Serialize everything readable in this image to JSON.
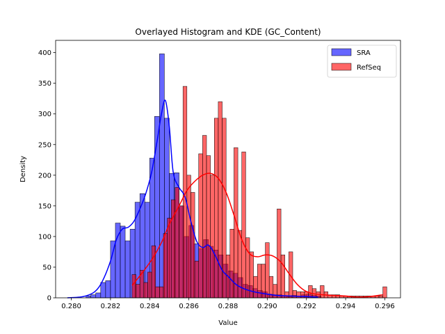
{
  "chart_data": {
    "type": "bar",
    "title": "Overlayed Histogram and KDE (GC_Content)",
    "xlabel": "Value",
    "ylabel": "Density",
    "xlim": [
      0.2792,
      0.2968
    ],
    "ylim": [
      0,
      420
    ],
    "x_ticks": [
      "0.280",
      "0.282",
      "0.284",
      "0.286",
      "0.288",
      "0.290",
      "0.292",
      "0.294",
      "0.296"
    ],
    "y_ticks": [
      "0",
      "50",
      "100",
      "150",
      "200",
      "250",
      "300",
      "350",
      "400"
    ],
    "grid": false,
    "legend_position": "top-right",
    "series": [
      {
        "name": "SRA",
        "kind": "histogram",
        "color": "#0000ff",
        "bin_width": 0.00025,
        "bins": [
          [
            0.28075,
            3
          ],
          [
            0.281,
            5
          ],
          [
            0.28125,
            8
          ],
          [
            0.2815,
            25
          ],
          [
            0.28175,
            28
          ],
          [
            0.282,
            93
          ],
          [
            0.28225,
            122
          ],
          [
            0.2825,
            117
          ],
          [
            0.28275,
            93
          ],
          [
            0.283,
            112
          ],
          [
            0.28325,
            156
          ],
          [
            0.2835,
            170
          ],
          [
            0.28375,
            156
          ],
          [
            0.284,
            228
          ],
          [
            0.28425,
            296
          ],
          [
            0.2845,
            398
          ],
          [
            0.28475,
            293
          ],
          [
            0.285,
            203
          ],
          [
            0.28525,
            204
          ],
          [
            0.2855,
            150
          ],
          [
            0.28575,
            100
          ],
          [
            0.286,
            118
          ],
          [
            0.28625,
            88
          ],
          [
            0.2865,
            80
          ],
          [
            0.28675,
            95
          ],
          [
            0.287,
            84
          ],
          [
            0.28725,
            78
          ],
          [
            0.2875,
            70
          ],
          [
            0.28775,
            55
          ],
          [
            0.288,
            44
          ],
          [
            0.28825,
            40
          ],
          [
            0.2885,
            33
          ],
          [
            0.28875,
            22
          ],
          [
            0.289,
            20
          ],
          [
            0.28925,
            15
          ],
          [
            0.2895,
            12
          ],
          [
            0.28975,
            10
          ],
          [
            0.29,
            6
          ],
          [
            0.29025,
            5
          ],
          [
            0.2905,
            5
          ],
          [
            0.29075,
            3
          ],
          [
            0.291,
            2
          ],
          [
            0.29125,
            4
          ],
          [
            0.2915,
            2
          ],
          [
            0.29175,
            5
          ],
          [
            0.292,
            6
          ],
          [
            0.29225,
            4
          ],
          [
            0.2925,
            3
          ]
        ],
        "kde_x": [
          0.2798,
          0.2806,
          0.2812,
          0.2816,
          0.282,
          0.2823,
          0.2826,
          0.2829,
          0.2832,
          0.2835,
          0.2838,
          0.2841,
          0.2844,
          0.2846,
          0.2848,
          0.285,
          0.2852,
          0.2855,
          0.2858,
          0.2861,
          0.2864,
          0.2867,
          0.287,
          0.2873,
          0.2877,
          0.288,
          0.2884,
          0.2888,
          0.2893,
          0.2898,
          0.2905,
          0.2912,
          0.292,
          0.2926
        ],
        "kde_y": [
          0,
          2,
          10,
          28,
          60,
          95,
          112,
          115,
          125,
          145,
          170,
          205,
          260,
          300,
          322,
          280,
          205,
          180,
          165,
          125,
          92,
          82,
          86,
          72,
          45,
          35,
          22,
          15,
          10,
          7,
          4,
          3,
          2,
          1
        ]
      },
      {
        "name": "RefSeq",
        "kind": "histogram",
        "color": "#ff0000",
        "bin_width": 0.0002,
        "bins": [
          [
            0.2831,
            38
          ],
          [
            0.2833,
            22
          ],
          [
            0.2835,
            45
          ],
          [
            0.2837,
            25
          ],
          [
            0.2839,
            42
          ],
          [
            0.2841,
            85
          ],
          [
            0.2843,
            18
          ],
          [
            0.2845,
            18
          ],
          [
            0.2847,
            105
          ],
          [
            0.2849,
            130
          ],
          [
            0.2851,
            160
          ],
          [
            0.2853,
            180
          ],
          [
            0.2855,
            150
          ],
          [
            0.2857,
            345
          ],
          [
            0.2859,
            200
          ],
          [
            0.2861,
            172
          ],
          [
            0.2863,
            60
          ],
          [
            0.2865,
            235
          ],
          [
            0.2867,
            265
          ],
          [
            0.2869,
            232
          ],
          [
            0.2871,
            200
          ],
          [
            0.2873,
            293
          ],
          [
            0.2875,
            320
          ],
          [
            0.2877,
            293
          ],
          [
            0.2879,
            70
          ],
          [
            0.2881,
            112
          ],
          [
            0.2883,
            245
          ],
          [
            0.2885,
            110
          ],
          [
            0.2887,
            238
          ],
          [
            0.2889,
            98
          ],
          [
            0.2891,
            75
          ],
          [
            0.2893,
            35
          ],
          [
            0.2895,
            55
          ],
          [
            0.2897,
            55
          ],
          [
            0.2899,
            90
          ],
          [
            0.2901,
            35
          ],
          [
            0.2903,
            22
          ],
          [
            0.2905,
            145
          ],
          [
            0.2907,
            70
          ],
          [
            0.2909,
            10
          ],
          [
            0.2911,
            75
          ],
          [
            0.2913,
            12
          ],
          [
            0.2915,
            10
          ],
          [
            0.2917,
            10
          ],
          [
            0.2919,
            10
          ],
          [
            0.2921,
            20
          ],
          [
            0.2923,
            15
          ],
          [
            0.2925,
            10
          ],
          [
            0.2927,
            20
          ],
          [
            0.2929,
            10
          ],
          [
            0.2931,
            5
          ],
          [
            0.2933,
            5
          ],
          [
            0.2935,
            5
          ],
          [
            0.2937,
            3
          ],
          [
            0.2939,
            3
          ],
          [
            0.2941,
            3
          ],
          [
            0.2943,
            3
          ],
          [
            0.2945,
            3
          ],
          [
            0.2947,
            3
          ],
          [
            0.2949,
            3
          ],
          [
            0.2951,
            3
          ],
          [
            0.2953,
            3
          ],
          [
            0.2955,
            3
          ],
          [
            0.2957,
            3
          ],
          [
            0.2959,
            18
          ]
        ],
        "kde_x": [
          0.2831,
          0.2836,
          0.2841,
          0.2846,
          0.285,
          0.2855,
          0.2859,
          0.2863,
          0.2867,
          0.2871,
          0.2875,
          0.2879,
          0.2883,
          0.2887,
          0.2891,
          0.2895,
          0.2899,
          0.2903,
          0.2907,
          0.2911,
          0.2915,
          0.2919,
          0.2923,
          0.2928,
          0.2934,
          0.294,
          0.2946,
          0.2952,
          0.2959
        ],
        "kde_y": [
          20,
          40,
          62,
          90,
          120,
          150,
          175,
          190,
          200,
          203,
          195,
          172,
          135,
          95,
          72,
          67,
          70,
          68,
          58,
          40,
          23,
          12,
          7,
          5,
          4,
          3,
          1,
          2,
          5
        ]
      }
    ]
  }
}
